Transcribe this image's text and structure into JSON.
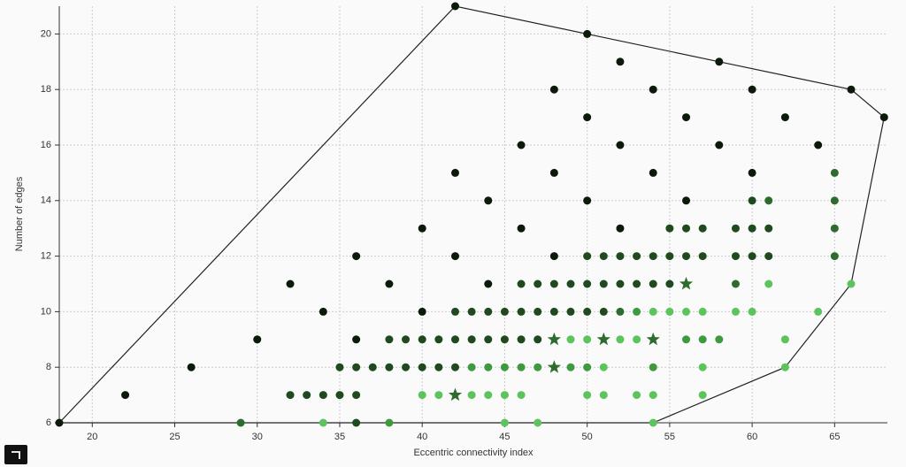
{
  "chart_data": {
    "type": "scatter",
    "xlabel": "Eccentric connectivity index",
    "ylabel": "Number of edges",
    "xlim": [
      18,
      68.2
    ],
    "ylim": [
      6,
      21
    ],
    "xticks": [
      20,
      25,
      30,
      35,
      40,
      45,
      50,
      55,
      60,
      65
    ],
    "yticks": [
      6,
      8,
      10,
      12,
      14,
      16,
      18,
      20
    ],
    "grid": true,
    "hull": {
      "color": "#222222",
      "x": [
        18,
        42,
        50,
        58,
        66,
        68,
        66,
        62,
        54,
        18
      ],
      "y": [
        6,
        21,
        20,
        19,
        18,
        17,
        11,
        8,
        6,
        6
      ]
    },
    "series": [
      {
        "color": "#0b1a0b",
        "marker": "circle",
        "x": [
          42,
          50,
          52,
          58,
          48,
          54,
          60,
          66,
          50,
          56,
          62,
          68,
          46,
          52,
          58,
          64,
          42,
          48,
          54,
          60,
          44,
          50,
          56,
          40,
          46,
          52,
          36,
          42,
          48,
          32,
          38,
          44,
          34,
          40,
          30,
          36,
          26,
          22,
          18
        ],
        "y": [
          21,
          20,
          19,
          19,
          18,
          18,
          18,
          18,
          17,
          17,
          17,
          17,
          16,
          16,
          16,
          16,
          15,
          15,
          15,
          15,
          14,
          14,
          14,
          13,
          13,
          13,
          12,
          12,
          12,
          11,
          11,
          11,
          10,
          10,
          9,
          9,
          8,
          7,
          6
        ]
      },
      {
        "color": "#1f4a1f",
        "marker": "circle",
        "x": [
          60,
          55,
          56,
          57,
          59,
          60,
          61,
          50,
          51,
          52,
          53,
          54,
          55,
          56,
          57,
          59,
          60,
          61,
          46,
          47,
          48,
          49,
          50,
          51,
          52,
          53,
          54,
          55,
          42,
          43,
          44,
          45,
          46,
          47,
          48,
          49,
          50,
          51,
          38,
          39,
          40,
          41,
          42,
          43,
          44,
          45,
          46,
          47,
          35,
          36,
          37,
          38,
          39,
          40,
          41,
          42,
          32,
          33,
          34,
          35,
          36,
          36
        ],
        "y": [
          14,
          13,
          13,
          13,
          13,
          13,
          13,
          12,
          12,
          12,
          12,
          12,
          12,
          12,
          12,
          12,
          12,
          12,
          11,
          11,
          11,
          11,
          11,
          11,
          11,
          11,
          11,
          11,
          10,
          10,
          10,
          10,
          10,
          10,
          10,
          10,
          10,
          10,
          9,
          9,
          9,
          9,
          9,
          9,
          9,
          9,
          9,
          9,
          8,
          8,
          8,
          8,
          8,
          8,
          8,
          8,
          7,
          7,
          7,
          7,
          7,
          6
        ]
      },
      {
        "color": "#2e6b2e",
        "marker": "circle",
        "x": [
          65,
          61,
          65,
          65,
          65,
          59,
          29,
          52
        ],
        "y": [
          15,
          14,
          14,
          13,
          12,
          11,
          6,
          10
        ]
      },
      {
        "color": "#3f9a3f",
        "marker": "circle",
        "x": [
          53,
          43,
          44,
          45,
          46,
          47,
          54,
          56,
          57,
          58,
          38,
          49,
          50
        ],
        "y": [
          10,
          8,
          8,
          8,
          8,
          8,
          8,
          9,
          9,
          9,
          6,
          8,
          8
        ]
      },
      {
        "color": "#5cc45c",
        "marker": "circle",
        "x": [
          61,
          66,
          54,
          55,
          56,
          57,
          59,
          60,
          64,
          49,
          50,
          52,
          53,
          62,
          51,
          57,
          62,
          40,
          41,
          43,
          44,
          45,
          46,
          50,
          51,
          53,
          54,
          57,
          34,
          45,
          47,
          54
        ],
        "y": [
          11,
          11,
          10,
          10,
          10,
          10,
          10,
          10,
          10,
          9,
          9,
          9,
          9,
          9,
          8,
          8,
          8,
          7,
          7,
          7,
          7,
          7,
          7,
          7,
          7,
          7,
          7,
          7,
          6,
          6,
          6,
          6
        ]
      },
      {
        "color": "#2e6b2e",
        "marker": "star",
        "x": [
          56,
          48,
          51,
          54,
          48,
          42
        ],
        "y": [
          11,
          9,
          9,
          9,
          8,
          7
        ]
      }
    ]
  }
}
